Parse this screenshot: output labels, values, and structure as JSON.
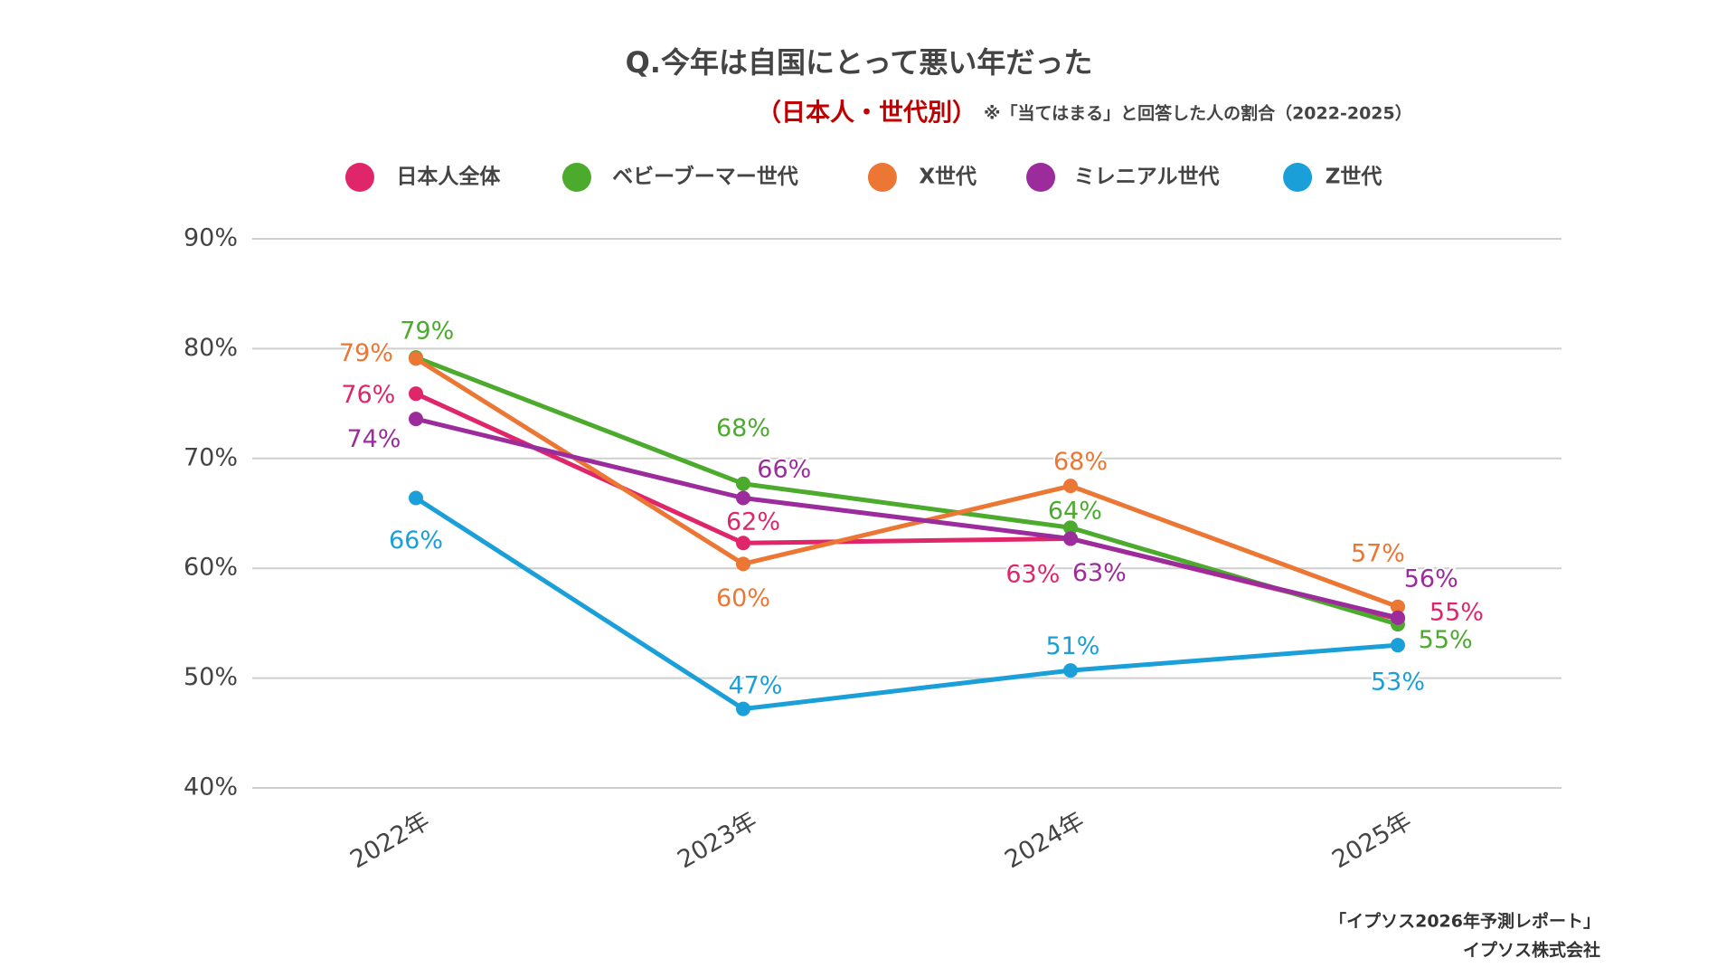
{
  "chart_data": {
    "type": "line",
    "title": "Q.今年は自国にとって悪い年だった",
    "subtitle": "（日本人・世代別）",
    "note": "※「当てはまる」と回答した人の割合（2022-2025）",
    "source": [
      "「イプソス2026年予測レポート」",
      "イプソス株式会社"
    ],
    "categories": [
      "2022年",
      "2023年",
      "2024年",
      "2025年"
    ],
    "ylim": [
      40,
      90
    ],
    "yticks": [
      {
        "value": 40,
        "label": "40%"
      },
      {
        "value": 50,
        "label": "50%"
      },
      {
        "value": 60,
        "label": "60%"
      },
      {
        "value": 70,
        "label": "70%"
      },
      {
        "value": 80,
        "label": "80%"
      },
      {
        "value": 90,
        "label": "90%"
      }
    ],
    "grid": true,
    "legend": "top",
    "series": [
      {
        "name": "日本人全体",
        "color": "#e0266b",
        "values": [
          75.9,
          62.3,
          62.7,
          55.4
        ],
        "value_labels": [
          "76%",
          "62%",
          "63%",
          "55%"
        ]
      },
      {
        "name": "ベビーブーマー世代",
        "color": "#4caa2d",
        "values": [
          79.2,
          67.7,
          63.7,
          54.9
        ],
        "value_labels": [
          "79%",
          "68%",
          "64%",
          "55%"
        ]
      },
      {
        "name": "X世代",
        "color": "#ec7633",
        "values": [
          79.1,
          60.4,
          67.5,
          56.5
        ],
        "value_labels": [
          "79%",
          "60%",
          "68%",
          "57%"
        ]
      },
      {
        "name": "ミレニアル世代",
        "color": "#9c2b9c",
        "values": [
          73.6,
          66.4,
          62.7,
          55.5
        ],
        "value_labels": [
          "74%",
          "66%",
          "63%",
          "56%"
        ]
      },
      {
        "name": "Z世代",
        "color": "#1a9fd8",
        "values": [
          66.4,
          47.2,
          50.7,
          53.0
        ],
        "value_labels": [
          "66%",
          "47%",
          "51%",
          "53%"
        ]
      }
    ]
  }
}
